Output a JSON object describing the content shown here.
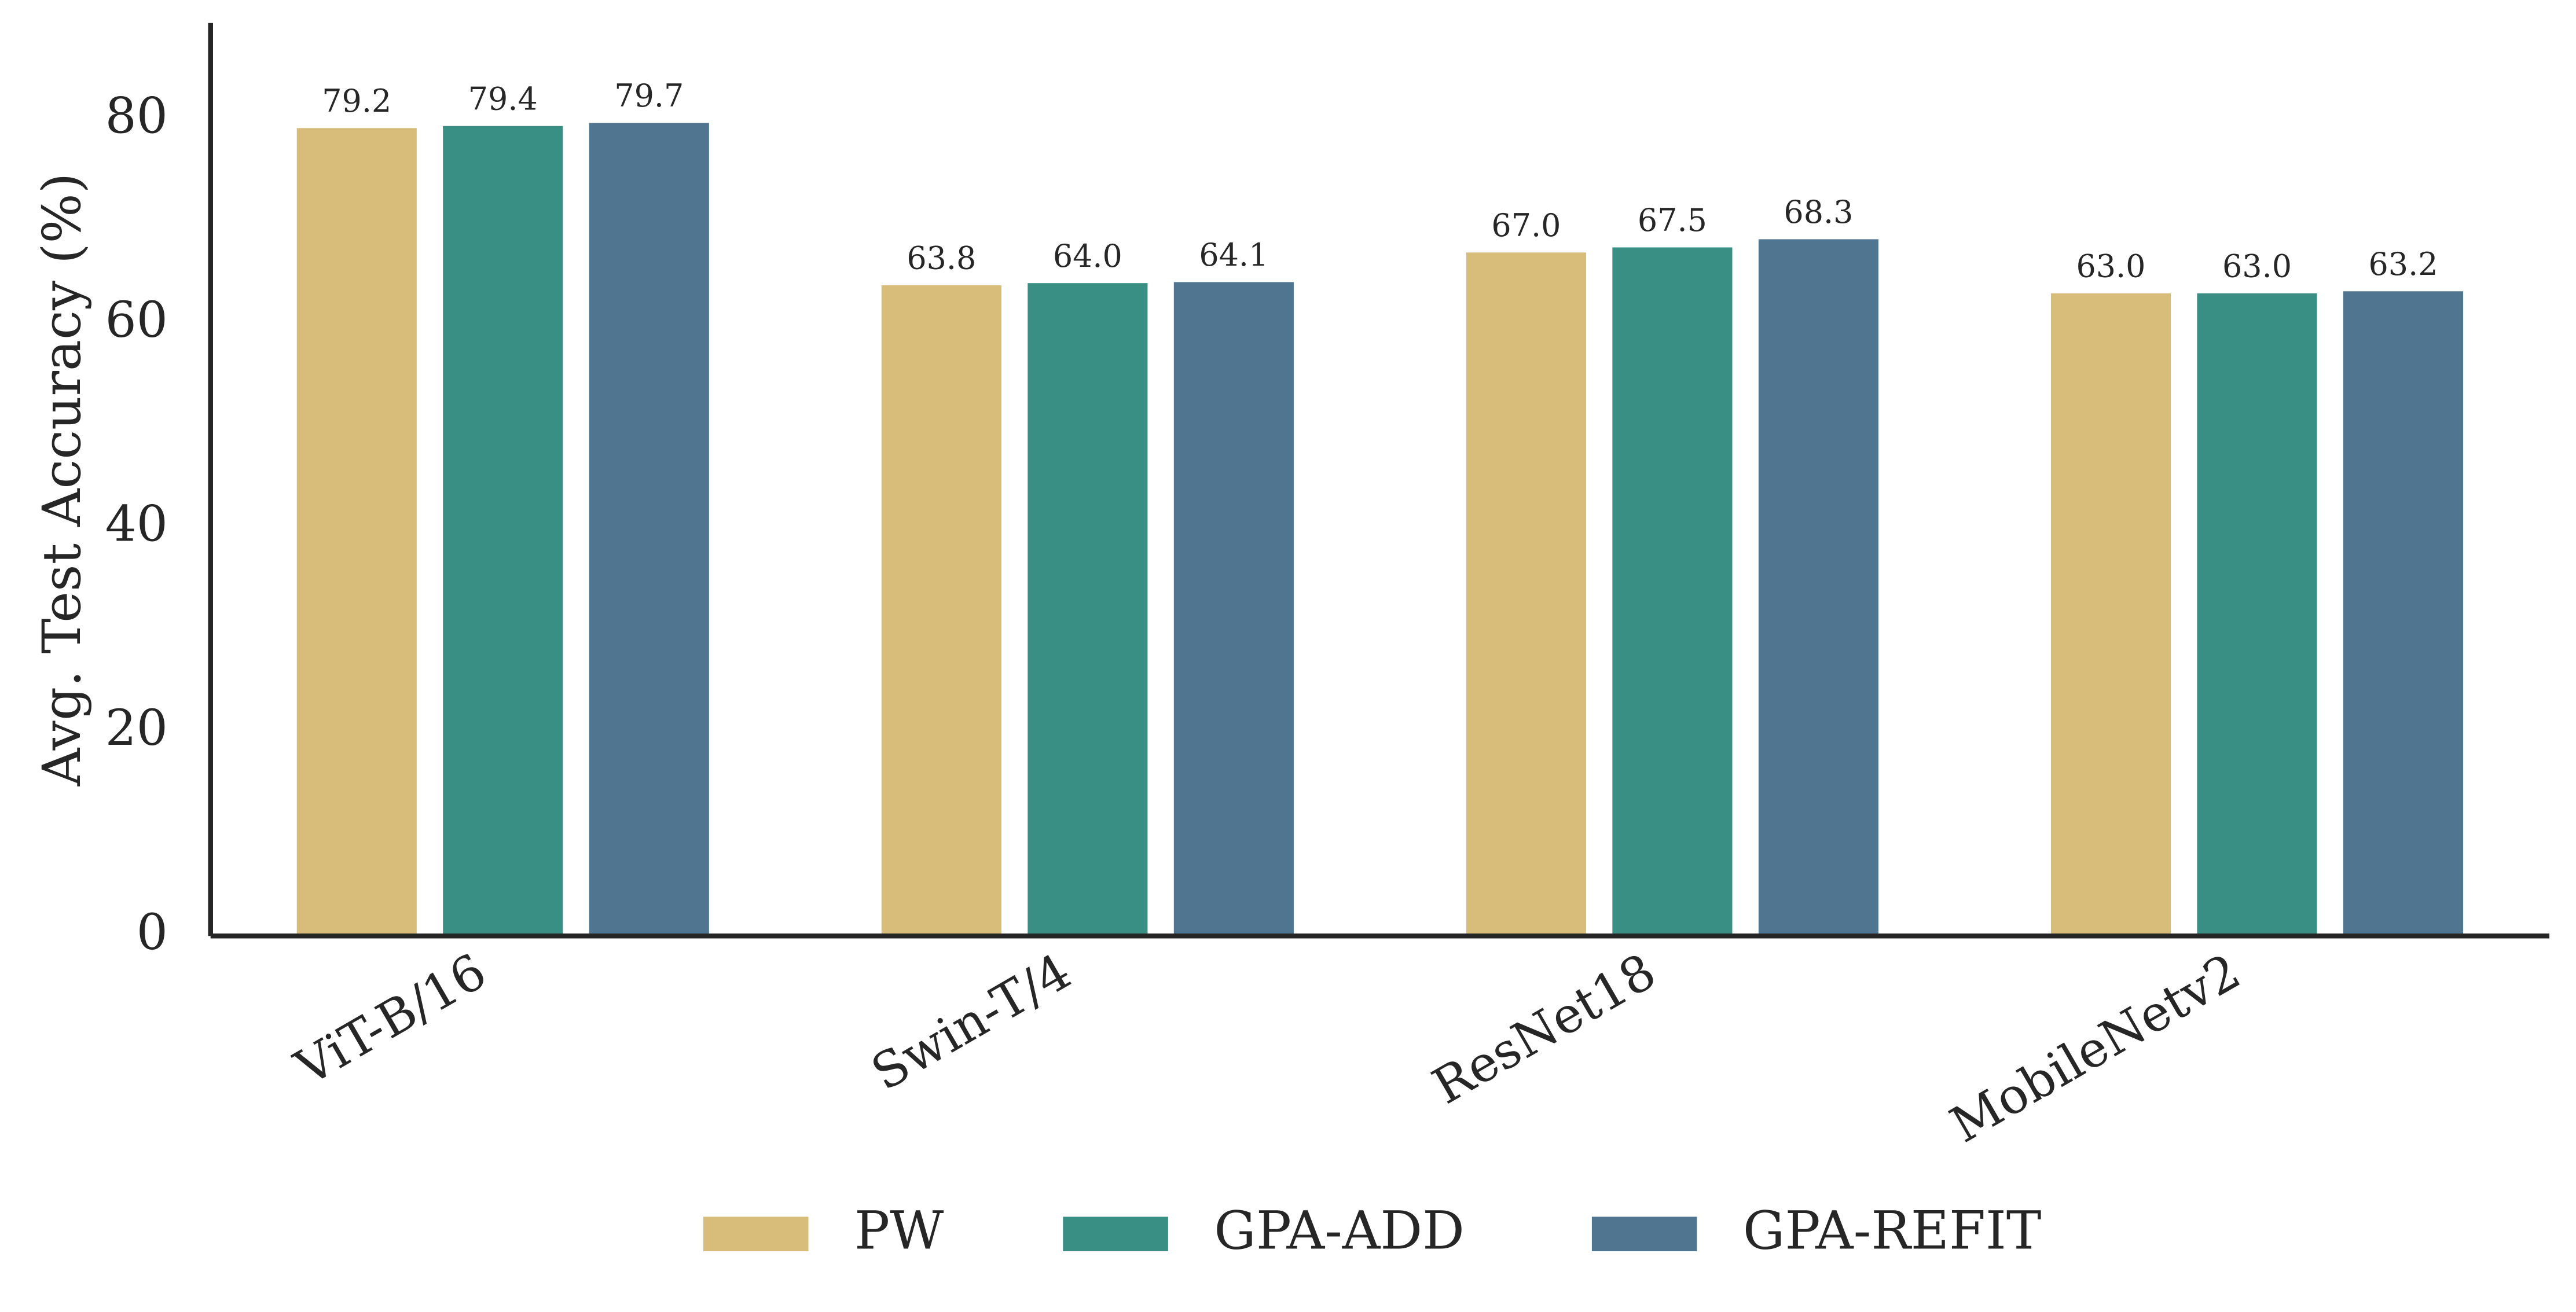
{
  "chart_data": {
    "type": "bar",
    "y_label": "Avg. Test Accuracy (%)",
    "categories": [
      "ViT-B/16",
      "Swin-T/4",
      "ResNet18",
      "MobileNetv2"
    ],
    "series": [
      {
        "name": "PW",
        "color": "#d8bc7a",
        "values": [
          79.2,
          63.8,
          67.0,
          63.0
        ],
        "value_labels": [
          "79.2",
          "63.8",
          "67.0",
          "63.0"
        ]
      },
      {
        "name": "GPA-ADD",
        "color": "#3a8f84",
        "values": [
          79.4,
          64.0,
          67.5,
          63.0
        ],
        "value_labels": [
          "79.4",
          "64.0",
          "67.5",
          "63.0"
        ]
      },
      {
        "name": "GPA-REFIT",
        "color": "#4f7590",
        "values": [
          79.7,
          64.1,
          68.3,
          63.2
        ],
        "value_labels": [
          "79.7",
          "64.1",
          "68.3",
          "63.2"
        ]
      }
    ],
    "ylim": [
      0,
      89.5
    ],
    "yticks": [
      0,
      20,
      40,
      60,
      80
    ],
    "grid": false,
    "legend": "bottom"
  }
}
